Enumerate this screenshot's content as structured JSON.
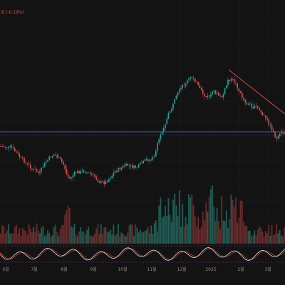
{
  "legend": {
    "text": "B (-0.19%)"
  },
  "chart_data": {
    "type": "candlestick",
    "x_tick_labels": [
      "6월",
      "7월",
      "8월",
      "9월",
      "10월",
      "11월",
      "12월",
      "2025",
      "2월",
      "3월"
    ],
    "colors": {
      "background": "#131313",
      "up": "#26a69a",
      "down": "#d9534f",
      "volume_up": "#1f5f55",
      "volume_down": "#6a2b2b",
      "horizontal_line": "#4a54c8",
      "trend_line": "#d9534f",
      "oscillator_fast": "#e6e6e6",
      "oscillator_slow": "#c0392b",
      "oscillator_band": "#7d3ca8",
      "grid": "#1e1e1e"
    },
    "grid": true,
    "annotations": [
      "horizontal support line",
      "descending trend line"
    ]
  }
}
